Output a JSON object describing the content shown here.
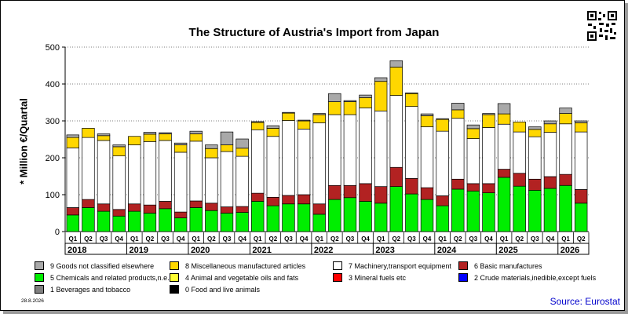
{
  "chart_data": {
    "type": "bar",
    "stacked": true,
    "title": "The Structure of Austria's Import from Japan",
    "ylabel": "* Million €/Quartal",
    "ylim": [
      0,
      500
    ],
    "yticks": [
      0,
      100,
      200,
      300,
      400,
      500
    ],
    "grid": "horizontal dotted",
    "legend_position": "bottom",
    "quarters": [
      "Q1",
      "Q2",
      "Q3",
      "Q4",
      "Q1",
      "Q2",
      "Q3",
      "Q4",
      "Q1",
      "Q2",
      "Q3",
      "Q4",
      "Q1",
      "Q2",
      "Q3",
      "Q4",
      "Q1",
      "Q2",
      "Q3",
      "Q4",
      "Q1",
      "Q2",
      "Q3",
      "Q4",
      "Q1",
      "Q2",
      "Q3",
      "Q4",
      "Q1",
      "Q2",
      "Q3",
      "Q4",
      "Q1",
      "Q2"
    ],
    "years": [
      "2018",
      "2019",
      "2020",
      "2021",
      "2022",
      "2023",
      "2024",
      "2025",
      "2026"
    ],
    "series": [
      {
        "name": "5 Chemicals and related products,n.e.s.",
        "color": "#00ee00",
        "values": [
          45,
          65,
          55,
          42,
          55,
          50,
          62,
          37,
          65,
          57,
          50,
          52,
          82,
          70,
          75,
          75,
          47,
          87,
          92,
          82,
          77,
          122,
          102,
          87,
          70,
          115,
          110,
          105,
          147,
          123,
          112,
          117,
          125,
          77
        ]
      },
      {
        "name": "6 Basic manufactures",
        "color": "#b22222",
        "values": [
          20,
          22,
          20,
          18,
          20,
          22,
          20,
          16,
          18,
          20,
          17,
          16,
          22,
          23,
          23,
          25,
          28,
          38,
          33,
          48,
          45,
          52,
          42,
          32,
          27,
          27,
          20,
          25,
          22,
          35,
          30,
          32,
          30,
          37
        ]
      },
      {
        "name": "7 Machinery,transport equipment",
        "color": "#ffffff",
        "values": [
          162,
          168,
          172,
          145,
          160,
          172,
          165,
          162,
          162,
          123,
          150,
          136,
          172,
          165,
          203,
          178,
          220,
          192,
          192,
          205,
          205,
          195,
          195,
          165,
          175,
          165,
          122,
          152,
          122,
          112,
          115,
          120,
          137,
          156
        ]
      },
      {
        "name": "8 Miscellaneous manufactured articles",
        "color": "#ffd700",
        "values": [
          28,
          25,
          13,
          25,
          23,
          20,
          18,
          20,
          20,
          25,
          18,
          22,
          20,
          22,
          20,
          22,
          22,
          35,
          35,
          28,
          80,
          77,
          35,
          30,
          32,
          23,
          27,
          35,
          28,
          27,
          20,
          23,
          28,
          25
        ]
      },
      {
        "name": "9 Goods not classified elsewhere",
        "color": "#a9a9a9",
        "values": [
          7,
          0,
          5,
          5,
          0,
          5,
          3,
          5,
          7,
          10,
          35,
          25,
          2,
          7,
          2,
          2,
          3,
          22,
          3,
          7,
          10,
          17,
          2,
          5,
          2,
          18,
          10,
          3,
          28,
          0,
          7,
          8,
          15,
          5
        ]
      }
    ],
    "legend_entries": [
      {
        "label": "9 Goods not classified elsewhere",
        "color": "#a9a9a9"
      },
      {
        "label": "8 Miscellaneous manufactured articles",
        "color": "#ffd700"
      },
      {
        "label": "7 Machinery,transport equipment",
        "color": "#ffffff"
      },
      {
        "label": "6 Basic manufactures",
        "color": "#b22222"
      },
      {
        "label": "5 Chemicals and related products,n.e.s.",
        "color": "#00ee00"
      },
      {
        "label": "4 Animal and vegetable oils and fats",
        "color": "#ffff33"
      },
      {
        "label": "3 Mineral fuels etc",
        "color": "#ff0000"
      },
      {
        "label": "2 Crude materials,inedible,except fuels",
        "color": "#0000ff"
      },
      {
        "label": "1 Beverages and tobacco",
        "color": "#808080"
      },
      {
        "label": "0 Food and live animals",
        "color": "#000000"
      }
    ]
  },
  "footer": {
    "date": "28.8.2026",
    "source": "Source: Eurostat"
  }
}
